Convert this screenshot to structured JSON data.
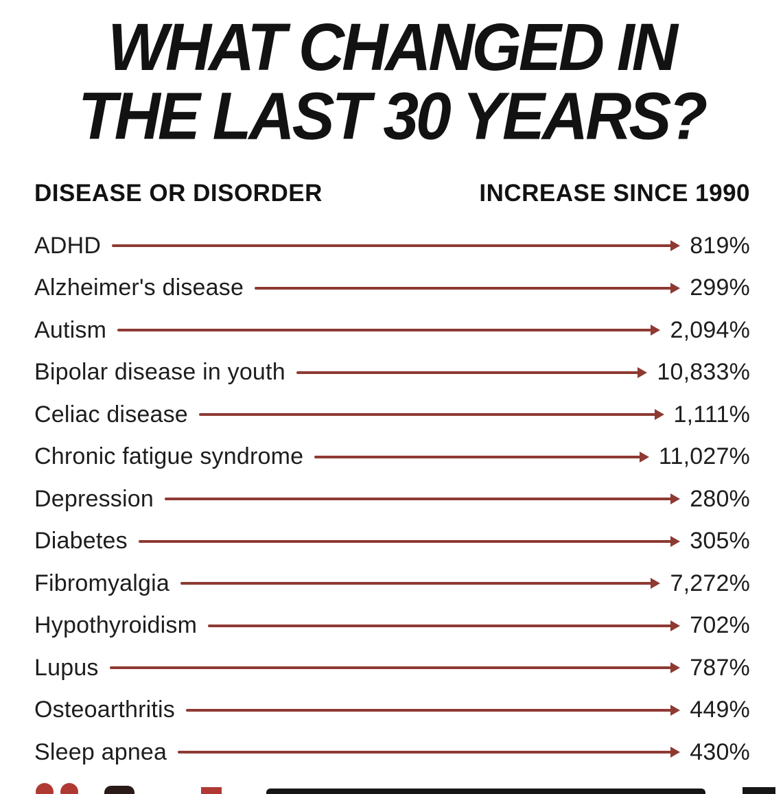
{
  "title": {
    "line1": "WHAT CHANGED IN",
    "line2": "THE LAST 30 YEARS?"
  },
  "table": {
    "header_left": "DISEASE OR DISORDER",
    "header_right": "INCREASE SINCE 1990",
    "rows": [
      {
        "label": "ADHD",
        "value": "819%"
      },
      {
        "label": "Alzheimer's disease",
        "value": "299%"
      },
      {
        "label": "Autism",
        "value": "2,094%"
      },
      {
        "label": "Bipolar disease in youth",
        "value": "10,833%"
      },
      {
        "label": "Celiac disease",
        "value": "1,111%"
      },
      {
        "label": "Chronic fatigue syndrome",
        "value": "11,027%"
      },
      {
        "label": "Depression",
        "value": "280%"
      },
      {
        "label": "Diabetes",
        "value": "305%"
      },
      {
        "label": "Fibromyalgia",
        "value": "7,272%"
      },
      {
        "label": "Hypothyroidism",
        "value": "702%"
      },
      {
        "label": "Lupus",
        "value": "787%"
      },
      {
        "label": "Osteoarthritis",
        "value": "449%"
      },
      {
        "label": "Sleep apnea",
        "value": "430%"
      }
    ]
  },
  "colors": {
    "arrow": "#8e3a33",
    "text": "#1d1d1f",
    "title": "#121212",
    "background": "#ffffff"
  },
  "chart_data": {
    "type": "table",
    "title": "WHAT CHANGED IN THE LAST 30 YEARS?",
    "columns": [
      "DISEASE OR DISORDER",
      "INCREASE SINCE 1990"
    ],
    "categories": [
      "ADHD",
      "Alzheimer's disease",
      "Autism",
      "Bipolar disease in youth",
      "Celiac disease",
      "Chronic fatigue syndrome",
      "Depression",
      "Diabetes",
      "Fibromyalgia",
      "Hypothyroidism",
      "Lupus",
      "Osteoarthritis",
      "Sleep apnea"
    ],
    "values": [
      819,
      299,
      2094,
      10833,
      1111,
      11027,
      280,
      305,
      7272,
      702,
      787,
      449,
      430
    ],
    "value_unit": "percent increase since 1990",
    "value_labels": [
      "819%",
      "299%",
      "2,094%",
      "10,833%",
      "1,111%",
      "11,027%",
      "280%",
      "305%",
      "7,272%",
      "702%",
      "787%",
      "449%",
      "430%"
    ],
    "legend_position": "none",
    "grid": false
  }
}
